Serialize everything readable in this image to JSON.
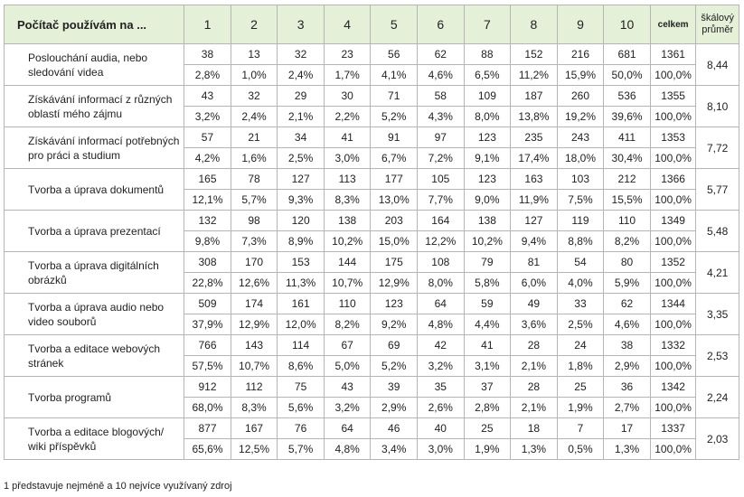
{
  "header": {
    "label": "Počítač používám na ...",
    "cols": [
      "1",
      "2",
      "3",
      "4",
      "5",
      "6",
      "7",
      "8",
      "9",
      "10"
    ],
    "celkem": "celkem",
    "scale": "škálový průměr"
  },
  "rows": [
    {
      "label": "Poslouchání audia, nebo sledování videa",
      "counts": [
        "38",
        "13",
        "32",
        "23",
        "56",
        "62",
        "88",
        "152",
        "216",
        "681",
        "1361"
      ],
      "pcts": [
        "2,8%",
        "1,0%",
        "2,4%",
        "1,7%",
        "4,1%",
        "4,6%",
        "6,5%",
        "11,2%",
        "15,9%",
        "50,0%",
        "100,0%"
      ],
      "avg": "8,44"
    },
    {
      "label": "Získávání informací z různých oblastí mého zájmu",
      "counts": [
        "43",
        "32",
        "29",
        "30",
        "71",
        "58",
        "109",
        "187",
        "260",
        "536",
        "1355"
      ],
      "pcts": [
        "3,2%",
        "2,4%",
        "2,1%",
        "2,2%",
        "5,2%",
        "4,3%",
        "8,0%",
        "13,8%",
        "19,2%",
        "39,6%",
        "100,0%"
      ],
      "avg": "8,10"
    },
    {
      "label": "Získávání informací potřebných pro práci a studium",
      "counts": [
        "57",
        "21",
        "34",
        "41",
        "91",
        "97",
        "123",
        "235",
        "243",
        "411",
        "1353"
      ],
      "pcts": [
        "4,2%",
        "1,6%",
        "2,5%",
        "3,0%",
        "6,7%",
        "7,2%",
        "9,1%",
        "17,4%",
        "18,0%",
        "30,4%",
        "100,0%"
      ],
      "avg": "7,72"
    },
    {
      "label": "Tvorba a úprava dokumentů",
      "counts": [
        "165",
        "78",
        "127",
        "113",
        "177",
        "105",
        "123",
        "163",
        "103",
        "212",
        "1366"
      ],
      "pcts": [
        "12,1%",
        "5,7%",
        "9,3%",
        "8,3%",
        "13,0%",
        "7,7%",
        "9,0%",
        "11,9%",
        "7,5%",
        "15,5%",
        "100,0%"
      ],
      "avg": "5,77"
    },
    {
      "label": "Tvorba a úprava prezentací",
      "counts": [
        "132",
        "98",
        "120",
        "138",
        "203",
        "164",
        "138",
        "127",
        "119",
        "110",
        "1349"
      ],
      "pcts": [
        "9,8%",
        "7,3%",
        "8,9%",
        "10,2%",
        "15,0%",
        "12,2%",
        "10,2%",
        "9,4%",
        "8,8%",
        "8,2%",
        "100,0%"
      ],
      "avg": "5,48"
    },
    {
      "label": "Tvorba a úprava digitálních obrázků",
      "counts": [
        "308",
        "170",
        "153",
        "144",
        "175",
        "108",
        "79",
        "81",
        "54",
        "80",
        "1352"
      ],
      "pcts": [
        "22,8%",
        "12,6%",
        "11,3%",
        "10,7%",
        "12,9%",
        "8,0%",
        "5,8%",
        "6,0%",
        "4,0%",
        "5,9%",
        "100,0%"
      ],
      "avg": "4,21"
    },
    {
      "label": "Tvorba a úprava audio nebo video souborů",
      "counts": [
        "509",
        "174",
        "161",
        "110",
        "123",
        "64",
        "59",
        "49",
        "33",
        "62",
        "1344"
      ],
      "pcts": [
        "37,9%",
        "12,9%",
        "12,0%",
        "8,2%",
        "9,2%",
        "4,8%",
        "4,4%",
        "3,6%",
        "2,5%",
        "4,6%",
        "100,0%"
      ],
      "avg": "3,35"
    },
    {
      "label": "Tvorba a editace webových stránek",
      "counts": [
        "766",
        "143",
        "114",
        "67",
        "69",
        "42",
        "41",
        "28",
        "24",
        "38",
        "1332"
      ],
      "pcts": [
        "57,5%",
        "10,7%",
        "8,6%",
        "5,0%",
        "5,2%",
        "3,2%",
        "3,1%",
        "2,1%",
        "1,8%",
        "2,9%",
        "100,0%"
      ],
      "avg": "2,53"
    },
    {
      "label": "Tvorba programů",
      "counts": [
        "912",
        "112",
        "75",
        "43",
        "39",
        "35",
        "37",
        "28",
        "25",
        "36",
        "1342"
      ],
      "pcts": [
        "68,0%",
        "8,3%",
        "5,6%",
        "3,2%",
        "2,9%",
        "2,6%",
        "2,8%",
        "2,1%",
        "1,9%",
        "2,7%",
        "100,0%"
      ],
      "avg": "2,24"
    },
    {
      "label": "Tvorba a editace blogových/ wiki příspěvků",
      "counts": [
        "877",
        "167",
        "76",
        "64",
        "46",
        "40",
        "25",
        "18",
        "7",
        "17",
        "1337"
      ],
      "pcts": [
        "65,6%",
        "12,5%",
        "5,7%",
        "4,8%",
        "3,4%",
        "3,0%",
        "1,9%",
        "1,3%",
        "0,5%",
        "1,3%",
        "100,0%"
      ],
      "avg": "2,03"
    }
  ],
  "footnote": "1 představuje nejméně a 10 nejvíce využívaný zdroj"
}
